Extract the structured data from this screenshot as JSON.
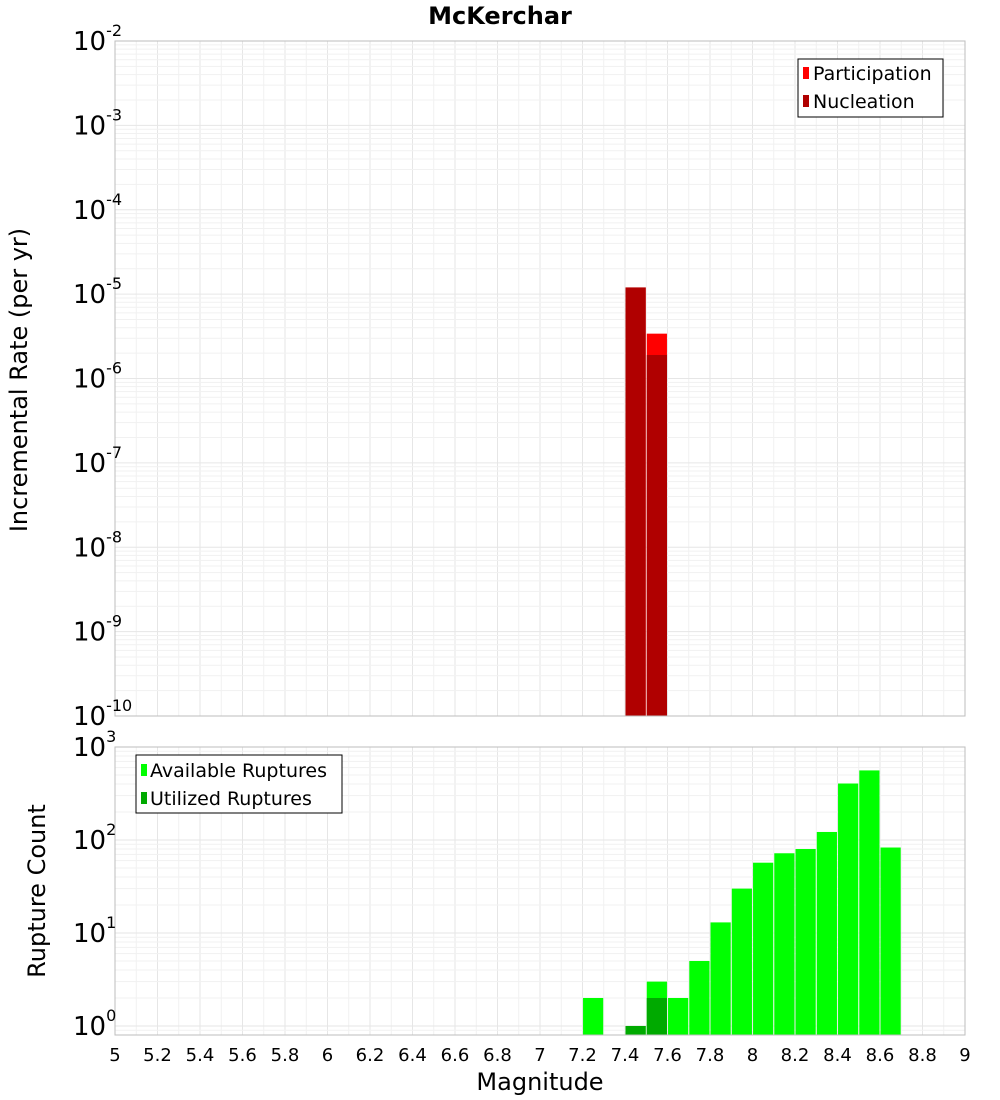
{
  "chart_data": [
    {
      "type": "bar",
      "title": "McKerchar",
      "xlabel": "",
      "ylabel": "Incremental Rate (per yr)",
      "yscale": "log",
      "ylim": [
        1e-10,
        0.01
      ],
      "y_ticks": [
        {
          "base": "10",
          "exp": "-10"
        },
        {
          "base": "10",
          "exp": "-9"
        },
        {
          "base": "10",
          "exp": "-8"
        },
        {
          "base": "10",
          "exp": "-7"
        },
        {
          "base": "10",
          "exp": "-6"
        },
        {
          "base": "10",
          "exp": "-5"
        },
        {
          "base": "10",
          "exp": "-4"
        },
        {
          "base": "10",
          "exp": "-3"
        },
        {
          "base": "10",
          "exp": "-2"
        }
      ],
      "xlim": [
        5,
        9
      ],
      "bar_width": 0.095,
      "legend_position": "top-right",
      "grid": true,
      "series": [
        {
          "name": "Participation",
          "color": "#ff0000",
          "x": [
            7.45,
            7.55
          ],
          "values": [
            1.2e-05,
            3.4e-06
          ]
        },
        {
          "name": "Nucleation",
          "color": "#b00000",
          "x": [
            7.45,
            7.55
          ],
          "values": [
            1.2e-05,
            1.9e-06
          ]
        }
      ]
    },
    {
      "type": "bar",
      "title": "",
      "xlabel": "Magnitude",
      "ylabel": "Rupture Count",
      "yscale": "log",
      "ylim": [
        0.8,
        1000
      ],
      "y_ticks": [
        {
          "base": "10",
          "exp": "0"
        },
        {
          "base": "10",
          "exp": "1"
        },
        {
          "base": "10",
          "exp": "2"
        },
        {
          "base": "10",
          "exp": "3"
        }
      ],
      "xlim": [
        5,
        9
      ],
      "bar_width": 0.095,
      "x_tick_labels": [
        "5",
        "5.2",
        "5.4",
        "5.6",
        "5.8",
        "6",
        "6.2",
        "6.4",
        "6.6",
        "6.8",
        "7",
        "7.2",
        "7.4",
        "7.6",
        "7.8",
        "8",
        "8.2",
        "8.4",
        "8.6",
        "8.8",
        "9"
      ],
      "legend_position": "top-left",
      "grid": true,
      "series": [
        {
          "name": "Available Ruptures",
          "color": "#00ff00",
          "x": [
            7.25,
            7.45,
            7.55,
            7.65,
            7.75,
            7.85,
            7.95,
            8.05,
            8.15,
            8.25,
            8.35,
            8.45,
            8.55,
            8.65
          ],
          "values": [
            2,
            1,
            3,
            2,
            5,
            13,
            30,
            57,
            72,
            80,
            122,
            405,
            560,
            83
          ]
        },
        {
          "name": "Utilized Ruptures",
          "color": "#00aa00",
          "x": [
            7.45,
            7.55
          ],
          "values": [
            1,
            2
          ]
        }
      ]
    }
  ]
}
